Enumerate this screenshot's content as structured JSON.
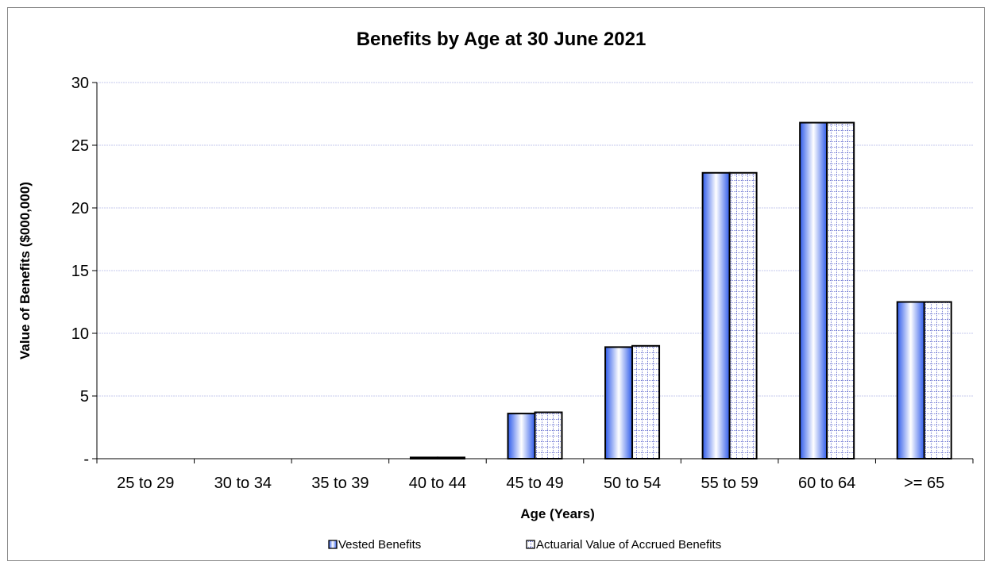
{
  "chart_data": {
    "type": "bar",
    "title": "Benefits by Age at 30 June 2021",
    "xlabel": "Age (Years)",
    "ylabel": "Value of Benefits ($000,000)",
    "categories": [
      "25 to 29",
      "30 to 34",
      "35 to 39",
      "40 to 44",
      "45 to 49",
      "50 to 54",
      "55 to 59",
      "60 to 64",
      ">= 65"
    ],
    "series": [
      {
        "name": "Vested Benefits",
        "values": [
          0,
          0,
          0,
          0.1,
          3.6,
          8.9,
          22.8,
          26.8,
          12.5
        ]
      },
      {
        "name": "Actuarial Value of Accrued Benefits",
        "values": [
          0,
          0,
          0,
          0.1,
          3.7,
          9.0,
          22.8,
          26.8,
          12.5
        ]
      }
    ],
    "ylim": [
      0,
      30
    ],
    "yticks": [
      0,
      5,
      10,
      15,
      20,
      25,
      30
    ],
    "ytick_labels": [
      "-",
      "5",
      "10",
      "15",
      "20",
      "25",
      "30"
    ],
    "grid": true,
    "legend_position": "bottom",
    "colors": {
      "vested_dark": "#2f5bea",
      "vested_light": "#ffffff",
      "accrued_fill": "#ffffff",
      "accrued_dots": "#7b83d6",
      "gridline": "#c6c9ee",
      "border": "#000000"
    }
  }
}
